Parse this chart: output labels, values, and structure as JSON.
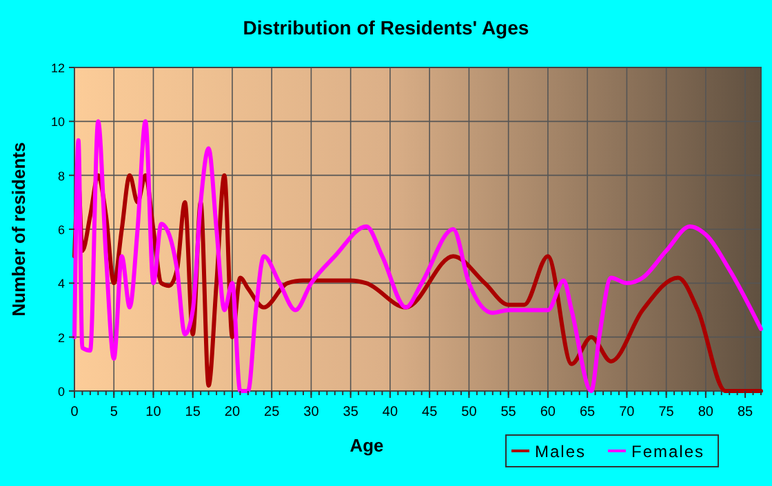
{
  "chart_data": {
    "type": "line",
    "title": "Distribution of Residents' Ages",
    "xlabel": "Age",
    "ylabel": "Number of residents",
    "xlim": [
      0,
      87
    ],
    "xticks": [
      0,
      5,
      10,
      15,
      20,
      25,
      30,
      35,
      40,
      45,
      50,
      55,
      60,
      65,
      70,
      75,
      80,
      85
    ],
    "ylim": [
      0,
      12
    ],
    "yticks": [
      0,
      2,
      4,
      6,
      8,
      10,
      12
    ],
    "grid": true,
    "legend": "bottom right",
    "series": [
      {
        "name": "Males",
        "color": "#aa0000",
        "x": [
          0,
          0.5,
          1,
          2,
          3,
          4,
          5,
          6,
          7,
          8,
          9,
          10,
          11,
          12,
          13,
          14,
          15,
          16,
          17,
          18,
          19,
          20,
          21,
          22,
          24,
          27,
          29,
          35,
          37,
          42,
          48,
          52,
          55,
          57,
          60,
          63,
          65.5,
          68,
          72,
          76.5,
          79,
          82.5,
          87
        ],
        "values": [
          5,
          7.8,
          5.2,
          6.5,
          8,
          6.5,
          4,
          6,
          8,
          7,
          8,
          6,
          4,
          3.9,
          4.5,
          7,
          2.1,
          7,
          0.2,
          4,
          8,
          2,
          4.2,
          3.8,
          3.1,
          4,
          4.1,
          4.1,
          4,
          3.1,
          5,
          4,
          3.2,
          3.2,
          5,
          1,
          2,
          1.1,
          3,
          4.2,
          3,
          0,
          0
        ]
      },
      {
        "name": "Females",
        "color": "#ff00ff",
        "x": [
          0,
          0.5,
          1,
          2,
          3,
          4,
          5,
          6,
          7,
          8,
          9,
          10,
          11,
          12,
          13,
          14,
          15,
          16,
          17,
          18,
          19,
          20,
          21,
          22,
          23,
          24,
          26,
          28,
          30,
          33,
          37,
          39,
          42,
          44,
          48,
          50,
          53,
          55,
          60,
          62,
          63,
          65.5,
          66.5,
          68,
          70,
          72,
          75,
          78,
          80,
          83,
          87
        ],
        "values": [
          2,
          9.3,
          1.6,
          1.5,
          10,
          5,
          1.2,
          5,
          3.1,
          6,
          10,
          4,
          6.2,
          5.8,
          4.5,
          2.1,
          3,
          7,
          9,
          6,
          3,
          4,
          0,
          0,
          3,
          5,
          4,
          3,
          4,
          5,
          6.1,
          5,
          3.1,
          4,
          6,
          4,
          2.9,
          3,
          3,
          4.1,
          3,
          0,
          2,
          4.2,
          4,
          4.2,
          5.2,
          6.1,
          5.8,
          4.5,
          2.3
        ]
      }
    ]
  }
}
